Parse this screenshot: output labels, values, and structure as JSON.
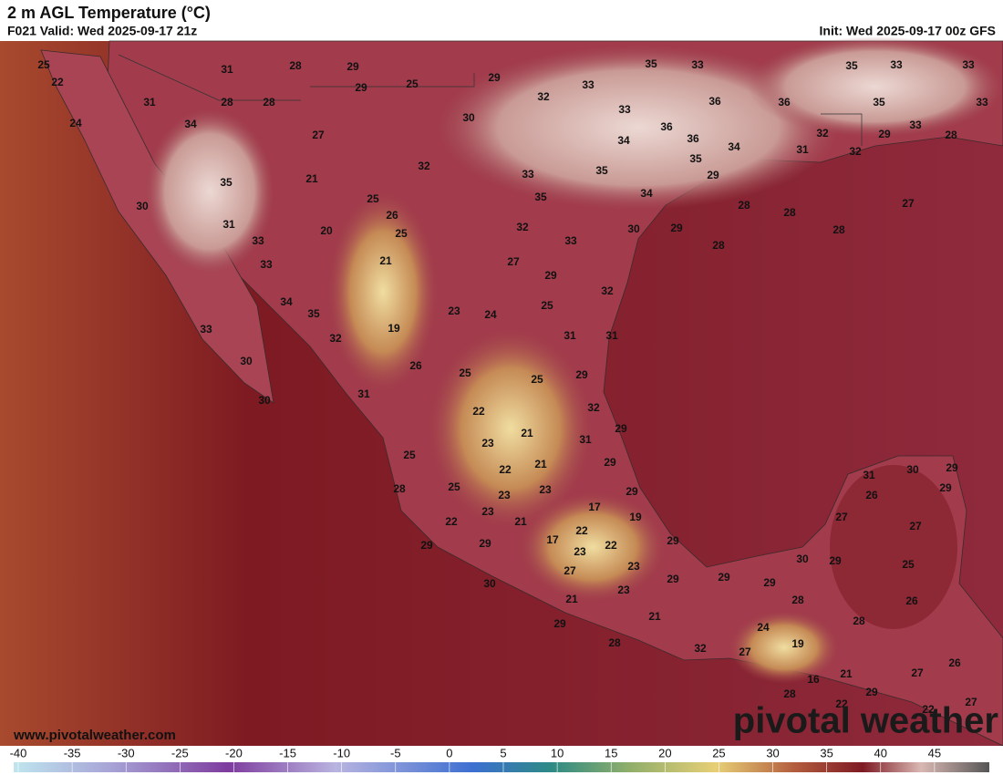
{
  "header": {
    "title": "2 m AGL Temperature (°C)",
    "valid": "F021 Valid: Wed 2025-09-17 21z",
    "init": "Init: Wed 2025-09-17 00z GFS"
  },
  "map": {
    "labels": [
      25,
      22,
      24,
      31,
      28,
      29,
      29,
      25,
      29,
      35,
      33,
      35,
      33,
      33,
      31,
      28,
      28,
      32,
      33,
      33,
      36,
      36,
      35,
      33,
      34,
      30,
      36,
      34,
      36,
      34,
      32,
      31,
      32,
      29,
      33,
      28,
      27,
      32,
      33,
      35,
      35,
      29,
      35,
      21,
      25,
      35,
      34,
      28,
      28,
      27,
      30,
      26,
      31,
      20,
      25,
      32,
      30,
      29,
      28,
      33,
      33,
      28,
      33,
      21,
      27,
      29,
      32,
      34,
      25,
      35,
      23,
      24,
      33,
      19,
      31,
      31,
      32,
      30,
      26,
      25,
      25,
      29,
      30,
      31,
      32,
      22,
      21,
      29,
      23,
      31,
      25,
      21,
      22,
      29,
      31,
      30,
      29,
      28,
      25,
      23,
      23,
      29,
      26,
      29,
      17,
      23,
      19,
      22,
      21,
      27,
      27,
      22,
      17,
      22,
      29,
      29,
      29,
      23,
      30,
      29,
      25,
      27,
      23,
      29,
      29,
      29,
      30,
      23,
      28,
      26,
      21,
      21,
      28,
      29,
      24,
      19,
      28,
      32,
      27,
      26,
      16,
      21,
      27,
      28,
      22,
      29,
      27,
      22
    ]
  },
  "colorbar": {
    "lim": [
      -40,
      50
    ],
    "ticks": [
      -40,
      -35,
      -30,
      -25,
      -20,
      -15,
      -10,
      -5,
      0,
      5,
      10,
      15,
      20,
      25,
      30,
      35,
      40,
      45
    ]
  },
  "footer": {
    "website": "www.pivotalweather.com",
    "watermark": "pivotal weather"
  }
}
